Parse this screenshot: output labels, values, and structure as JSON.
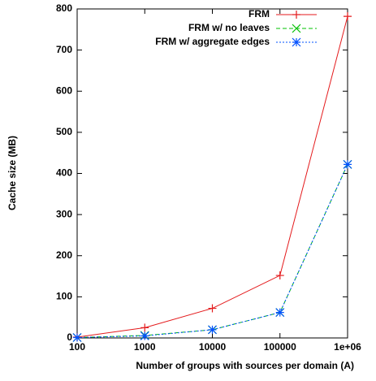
{
  "chart_data": {
    "type": "line",
    "x_label": "Number of groups with sources per domain (A)",
    "y_label": "Cache size (MB)",
    "x": [
      100,
      1000,
      10000,
      100000,
      1000000
    ],
    "xlim": [
      100,
      1000000
    ],
    "xscale": "log",
    "xticks": [
      100,
      1000,
      10000,
      100000,
      {
        "value": 1000000,
        "label": "1e+06"
      }
    ],
    "ylim": [
      0,
      800
    ],
    "yticks": [
      0,
      100,
      200,
      300,
      400,
      500,
      600,
      700,
      800
    ],
    "legend": "top-right",
    "series": [
      {
        "name": "FRM",
        "color": "#e41a1c",
        "marker": "plus",
        "dash": "solid",
        "values": [
          2,
          25,
          72,
          152,
          782
        ]
      },
      {
        "name": "FRM w/ no leaves",
        "color": "#00c000",
        "marker": "cross",
        "dash": "dashed",
        "values": [
          1,
          6,
          20,
          62,
          422
        ]
      },
      {
        "name": "FRM w/ aggregate edges",
        "color": "#0050ff",
        "marker": "star",
        "dash": "dotted",
        "values": [
          1,
          5,
          20,
          62,
          422
        ]
      }
    ]
  }
}
